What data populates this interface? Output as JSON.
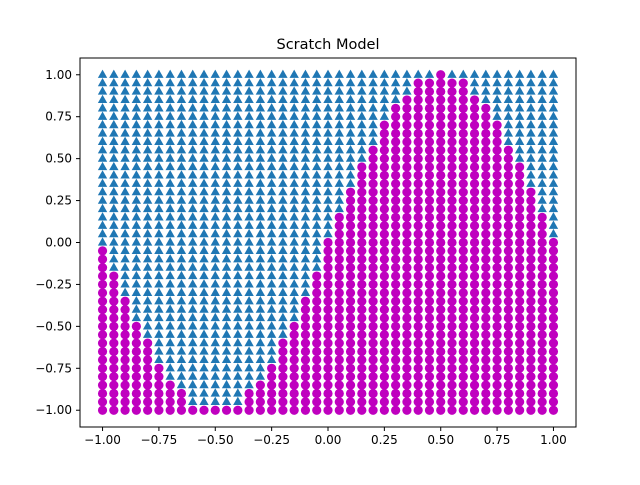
{
  "chart_data": {
    "type": "scatter",
    "title": "Scratch Model",
    "xlabel": "",
    "ylabel": "",
    "xlim": [
      -1.1,
      1.1
    ],
    "ylim": [
      -1.1,
      1.1
    ],
    "xticks": [
      -1.0,
      -0.75,
      -0.5,
      -0.25,
      0.0,
      0.25,
      0.5,
      0.75,
      1.0
    ],
    "xtick_labels": [
      "−1.00",
      "−0.75",
      "−0.50",
      "−0.25",
      "0.00",
      "0.25",
      "0.50",
      "0.75",
      "1.00"
    ],
    "yticks": [
      -1.0,
      -0.75,
      -0.5,
      -0.25,
      0.0,
      0.25,
      0.5,
      0.75,
      1.0
    ],
    "ytick_labels": [
      "−1.00",
      "−0.75",
      "−0.50",
      "−0.25",
      "0.00",
      "0.25",
      "0.50",
      "0.75",
      "1.00"
    ],
    "grid": false,
    "grid_points": {
      "x_start": -1.0,
      "x_end": 1.0,
      "x_step": 0.05,
      "y_start": -1.0,
      "y_end": 1.0,
      "y_step": 0.05
    },
    "decision_boundary": "y = sin(pi * x)",
    "series": [
      {
        "marker": "triangle",
        "color": "#1f77b4",
        "region": "y > sin(pi x)"
      },
      {
        "marker": "circle",
        "color": "#bf00bf",
        "region": "y <= sin(pi x)"
      }
    ]
  }
}
